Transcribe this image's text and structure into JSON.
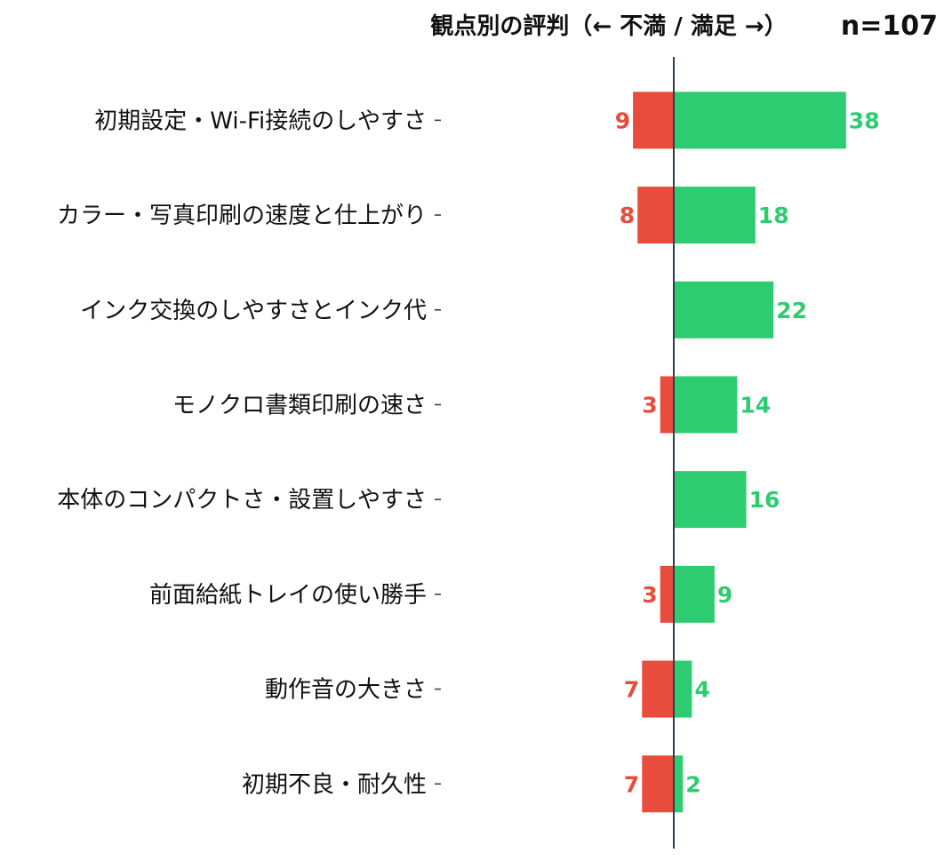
{
  "chart_data": {
    "type": "bar",
    "orientation": "horizontal-diverging",
    "title": "観点別の評判（← 不満 / 満足 →）",
    "subtitle": "n=107",
    "categories": [
      "初期設定・Wi-Fi接続のしやすさ",
      "カラー・写真印刷の速度と仕上がり",
      "インク交換のしやすさとインク代",
      "モノクロ書類印刷の速さ",
      "本体のコンパクトさ・設置しやすさ",
      "前面給紙トレイの使い勝手",
      "動作音の大きさ",
      "初期不良・耐久性"
    ],
    "series": [
      {
        "name": "不満",
        "values": [
          9,
          8,
          0,
          3,
          0,
          3,
          7,
          7
        ],
        "color": "#e74c3c",
        "direction": "left"
      },
      {
        "name": "満足",
        "values": [
          38,
          18,
          22,
          14,
          16,
          9,
          4,
          2
        ],
        "color": "#2ecc71",
        "direction": "right"
      }
    ],
    "xlim": [
      -9,
      38
    ],
    "axis_color": "#2c3e50",
    "grid": false,
    "legend": "none"
  }
}
